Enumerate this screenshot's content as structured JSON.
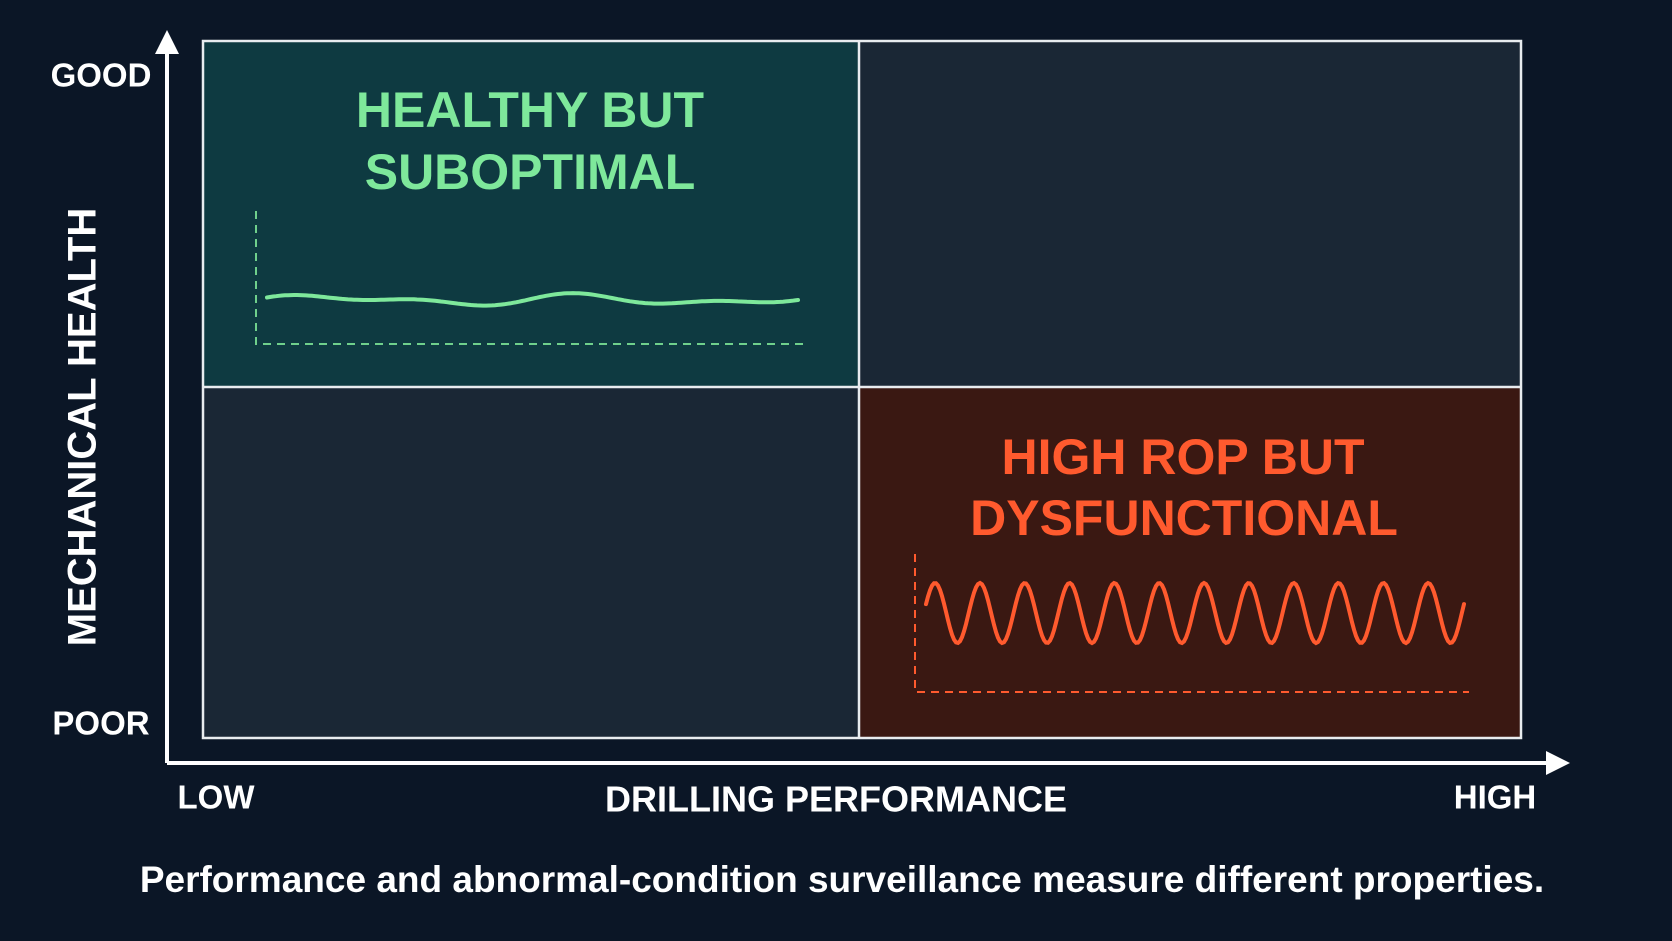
{
  "y_axis": {
    "label": "MECHANICAL HEALTH",
    "top": "GOOD",
    "bottom": "POOR"
  },
  "x_axis": {
    "label": "DRILLING PERFORMANCE",
    "left": "LOW",
    "right": "HIGH"
  },
  "quadrants": [
    {
      "position": "top-left",
      "title_lines": [
        "HEALTHY BUT",
        "SUBOPTIMAL"
      ]
    },
    {
      "position": "bottom-right",
      "title_lines": [
        "HIGH ROP BUT",
        "DYSFUNCTIONAL"
      ]
    }
  ],
  "caption": "Performance and abnormal-condition surveillance measure different properties."
}
